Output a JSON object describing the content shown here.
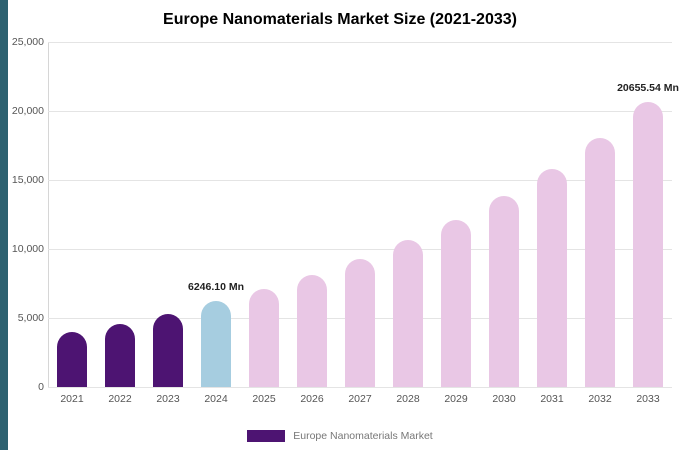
{
  "page": {
    "background": "#ffffff",
    "accent_stripe_color": "#2d6170"
  },
  "chart_data": {
    "type": "bar",
    "title": "Europe Nanomaterials Market Size (2021-2033)",
    "legend": "Europe Nanomaterials Market",
    "ylabel": "",
    "xlabel": "",
    "ylim": [
      0,
      25000
    ],
    "yticks": [
      0,
      5000,
      10000,
      15000,
      20000,
      25000
    ],
    "ytick_labels": [
      "0",
      "5,000",
      "10,000",
      "15,000",
      "20,000",
      "25,000"
    ],
    "grid": true,
    "legend_position": "bottom-center",
    "categories": [
      "2021",
      "2022",
      "2023",
      "2024",
      "2025",
      "2026",
      "2027",
      "2028",
      "2029",
      "2030",
      "2031",
      "2032",
      "2033"
    ],
    "series": [
      {
        "name": "Europe Nanomaterials Market",
        "values": [
          4000,
          4600,
          5300,
          6246.1,
          7130,
          8150,
          9300,
          10620,
          12130,
          13860,
          15820,
          18070,
          20655.54
        ]
      }
    ],
    "annotations": [
      {
        "category": "2024",
        "text": "6246.10 Mn"
      },
      {
        "category": "2033",
        "text": "20655.54 Mn"
      }
    ],
    "colors": {
      "historical": "#4d1472",
      "current": "#a6cde0",
      "forecast": "#e9c7e5"
    },
    "legend_color_key": "historical",
    "bar_color_keys": [
      "historical",
      "historical",
      "historical",
      "current",
      "forecast",
      "forecast",
      "forecast",
      "forecast",
      "forecast",
      "forecast",
      "forecast",
      "forecast",
      "forecast"
    ]
  }
}
